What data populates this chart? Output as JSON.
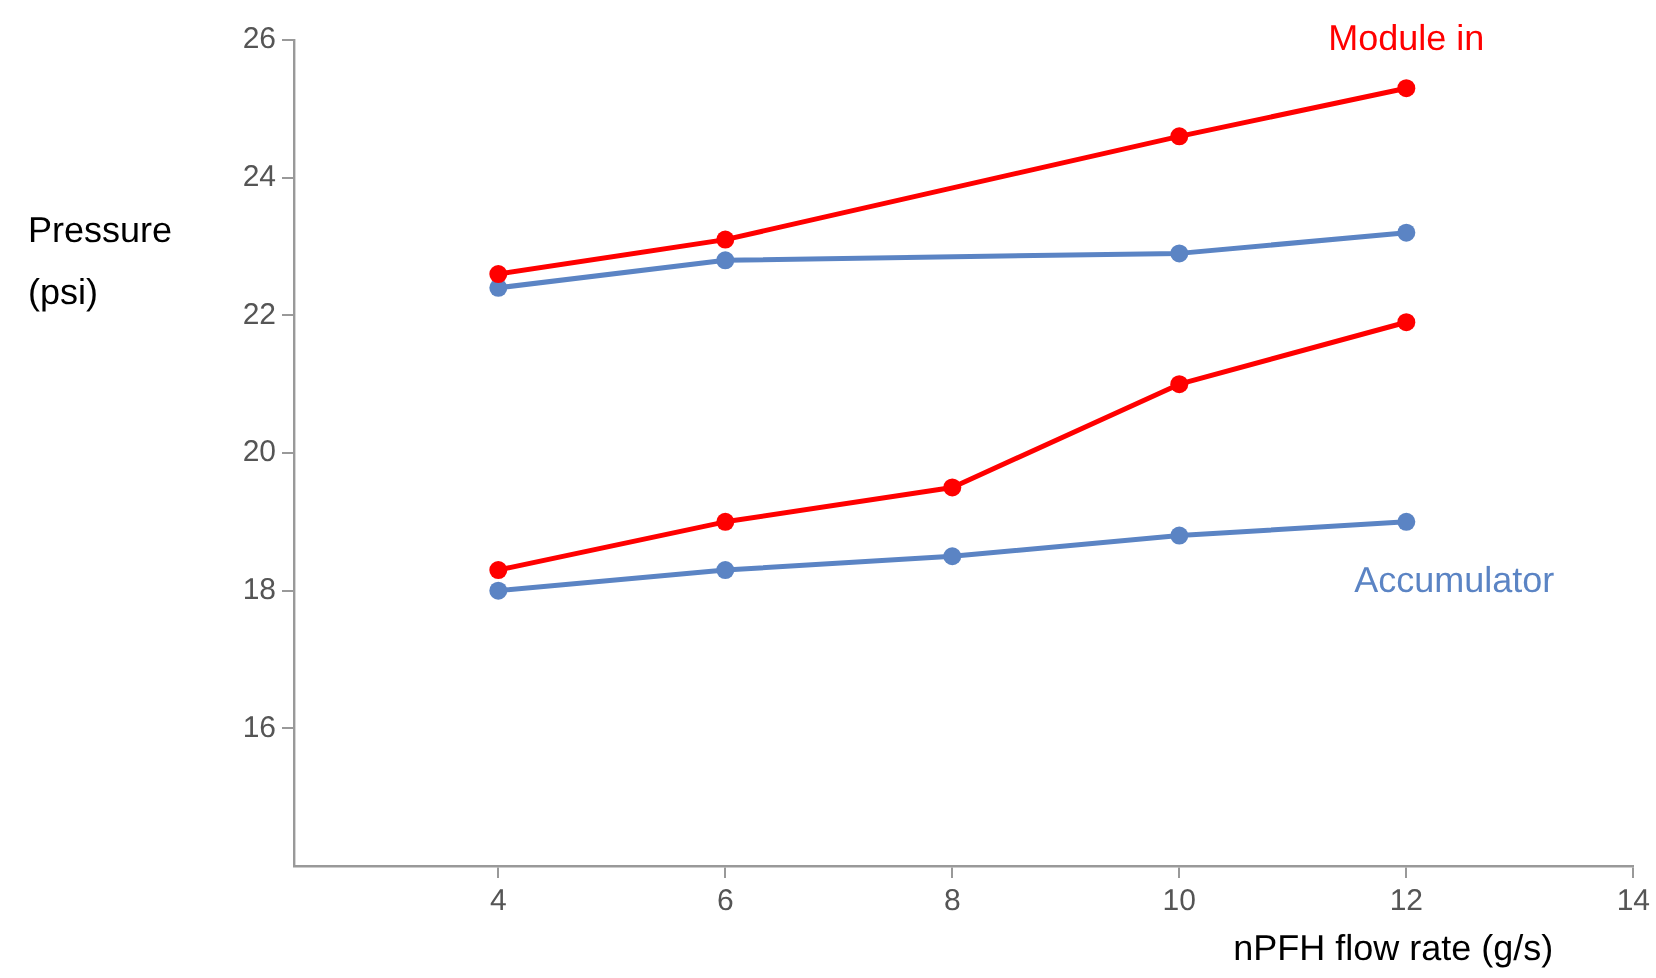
{
  "chart_data": {
    "type": "line",
    "xlabel": "nPFH flow rate (g/s)",
    "ylabel": "Pressure (psi)",
    "xlim": [
      2.2,
      14
    ],
    "xticks": [
      4,
      6,
      8,
      10,
      12,
      14
    ],
    "ylim": [
      14,
      26
    ],
    "yticks": [
      16,
      18,
      20,
      22,
      24,
      26
    ],
    "grid": false,
    "legend": false,
    "marker": "circle",
    "line_style": "solid",
    "series": [
      {
        "name": "Module in",
        "color": "#ff0000",
        "x": [
          4,
          6,
          10,
          12
        ],
        "values": [
          22.6,
          23.1,
          24.6,
          25.3
        ]
      },
      {
        "color": "#5b84c4",
        "x": [
          4,
          6,
          10,
          12
        ],
        "values": [
          22.4,
          22.8,
          22.9,
          23.2
        ]
      },
      {
        "color": "#ff0000",
        "x": [
          4,
          6,
          8,
          10,
          12
        ],
        "values": [
          18.3,
          19.0,
          19.5,
          21.0,
          21.9
        ]
      },
      {
        "name": "Accumulator",
        "color": "#5b84c4",
        "x": [
          4,
          6,
          8,
          10,
          12
        ],
        "values": [
          18.0,
          18.3,
          18.5,
          18.8,
          19.0
        ]
      }
    ]
  }
}
